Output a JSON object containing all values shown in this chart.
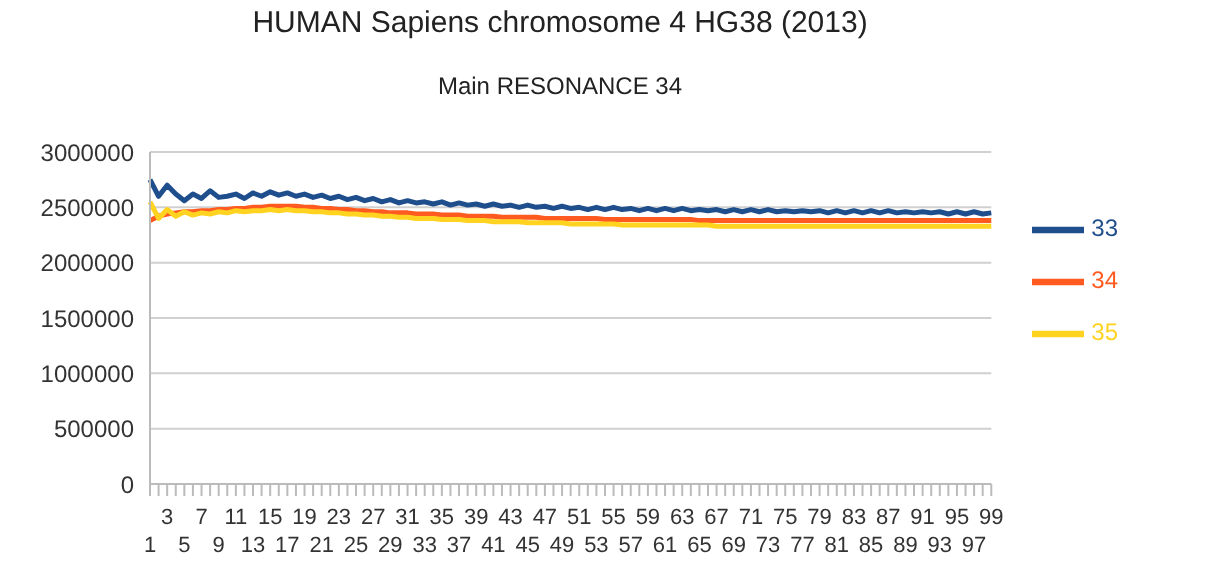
{
  "chart_data": {
    "type": "line",
    "title": "HUMAN Sapiens chromosome 4 HG38 (2013)",
    "subtitle": "Main RESONANCE 34",
    "categories": [
      "1",
      null,
      "3",
      null,
      "5",
      null,
      "7",
      null,
      "9",
      null,
      "11",
      null,
      "13",
      null,
      "15",
      null,
      "17",
      null,
      "19",
      null,
      "21",
      null,
      "23",
      null,
      "25",
      null,
      "27",
      null,
      "29",
      null,
      "31",
      null,
      "33",
      null,
      "35",
      null,
      "37",
      null,
      "39",
      null,
      "41",
      null,
      "43",
      null,
      "45",
      null,
      "47",
      null,
      "49",
      null,
      "51",
      null,
      "53",
      null,
      "55",
      null,
      "57",
      null,
      "59",
      null,
      "61",
      null,
      "63",
      null,
      "65",
      null,
      "67",
      null,
      "69",
      null,
      "71",
      null,
      "73",
      null,
      "75",
      null,
      "77",
      null,
      "79",
      null,
      "81",
      null,
      "83",
      null,
      "85",
      null,
      "87",
      null,
      "89",
      null,
      "91",
      null,
      "93",
      null,
      "95",
      null,
      "97",
      null,
      "99"
    ],
    "series": [
      {
        "name": "33",
        "color": "#1f4e8c",
        "values": [
          2750000,
          2600000,
          2700000,
          2620000,
          2560000,
          2620000,
          2580000,
          2650000,
          2590000,
          2600000,
          2620000,
          2580000,
          2630000,
          2600000,
          2640000,
          2610000,
          2630000,
          2600000,
          2620000,
          2590000,
          2610000,
          2580000,
          2600000,
          2570000,
          2590000,
          2560000,
          2580000,
          2550000,
          2570000,
          2540000,
          2560000,
          2540000,
          2550000,
          2530000,
          2550000,
          2520000,
          2540000,
          2520000,
          2530000,
          2510000,
          2530000,
          2510000,
          2520000,
          2500000,
          2520000,
          2500000,
          2510000,
          2490000,
          2510000,
          2490000,
          2500000,
          2480000,
          2500000,
          2480000,
          2500000,
          2480000,
          2490000,
          2470000,
          2490000,
          2470000,
          2490000,
          2470000,
          2490000,
          2470000,
          2480000,
          2470000,
          2480000,
          2460000,
          2480000,
          2460000,
          2480000,
          2460000,
          2480000,
          2460000,
          2470000,
          2460000,
          2470000,
          2460000,
          2470000,
          2450000,
          2470000,
          2450000,
          2470000,
          2450000,
          2470000,
          2450000,
          2470000,
          2450000,
          2460000,
          2450000,
          2460000,
          2450000,
          2460000,
          2440000,
          2460000,
          2440000,
          2460000,
          2440000,
          2450000
        ]
      },
      {
        "name": "34",
        "color": "#ff5a1f",
        "values": [
          2380000,
          2420000,
          2440000,
          2450000,
          2460000,
          2460000,
          2470000,
          2470000,
          2480000,
          2480000,
          2490000,
          2490000,
          2500000,
          2500000,
          2510000,
          2510000,
          2510000,
          2510000,
          2500000,
          2500000,
          2490000,
          2490000,
          2480000,
          2480000,
          2470000,
          2470000,
          2460000,
          2460000,
          2450000,
          2450000,
          2450000,
          2440000,
          2440000,
          2440000,
          2430000,
          2430000,
          2430000,
          2420000,
          2420000,
          2420000,
          2420000,
          2410000,
          2410000,
          2410000,
          2410000,
          2410000,
          2400000,
          2400000,
          2400000,
          2400000,
          2400000,
          2400000,
          2400000,
          2390000,
          2390000,
          2390000,
          2390000,
          2390000,
          2390000,
          2390000,
          2390000,
          2390000,
          2390000,
          2390000,
          2380000,
          2380000,
          2380000,
          2380000,
          2380000,
          2380000,
          2380000,
          2380000,
          2380000,
          2380000,
          2380000,
          2380000,
          2380000,
          2380000,
          2380000,
          2380000,
          2380000,
          2380000,
          2380000,
          2380000,
          2380000,
          2380000,
          2380000,
          2380000,
          2380000,
          2380000,
          2380000,
          2380000,
          2380000,
          2380000,
          2380000,
          2380000,
          2380000,
          2380000,
          2380000
        ]
      },
      {
        "name": "35",
        "color": "#ffd320",
        "values": [
          2550000,
          2400000,
          2480000,
          2420000,
          2460000,
          2430000,
          2450000,
          2440000,
          2460000,
          2450000,
          2470000,
          2460000,
          2470000,
          2470000,
          2480000,
          2470000,
          2480000,
          2470000,
          2470000,
          2460000,
          2460000,
          2450000,
          2450000,
          2440000,
          2440000,
          2430000,
          2430000,
          2420000,
          2420000,
          2410000,
          2410000,
          2400000,
          2400000,
          2400000,
          2390000,
          2390000,
          2390000,
          2380000,
          2380000,
          2380000,
          2370000,
          2370000,
          2370000,
          2370000,
          2360000,
          2360000,
          2360000,
          2360000,
          2360000,
          2350000,
          2350000,
          2350000,
          2350000,
          2350000,
          2350000,
          2340000,
          2340000,
          2340000,
          2340000,
          2340000,
          2340000,
          2340000,
          2340000,
          2340000,
          2340000,
          2340000,
          2330000,
          2330000,
          2330000,
          2330000,
          2330000,
          2330000,
          2330000,
          2330000,
          2330000,
          2330000,
          2330000,
          2330000,
          2330000,
          2330000,
          2330000,
          2330000,
          2330000,
          2330000,
          2330000,
          2330000,
          2330000,
          2330000,
          2330000,
          2330000,
          2330000,
          2330000,
          2330000,
          2330000,
          2330000,
          2330000,
          2330000,
          2330000,
          2330000
        ]
      }
    ],
    "ylim": [
      0,
      3000000
    ],
    "yticks": [
      0,
      500000,
      1000000,
      1500000,
      2000000,
      2500000,
      3000000
    ],
    "grid": "y",
    "legend": "right",
    "marker": "none",
    "line_style": "solid"
  }
}
